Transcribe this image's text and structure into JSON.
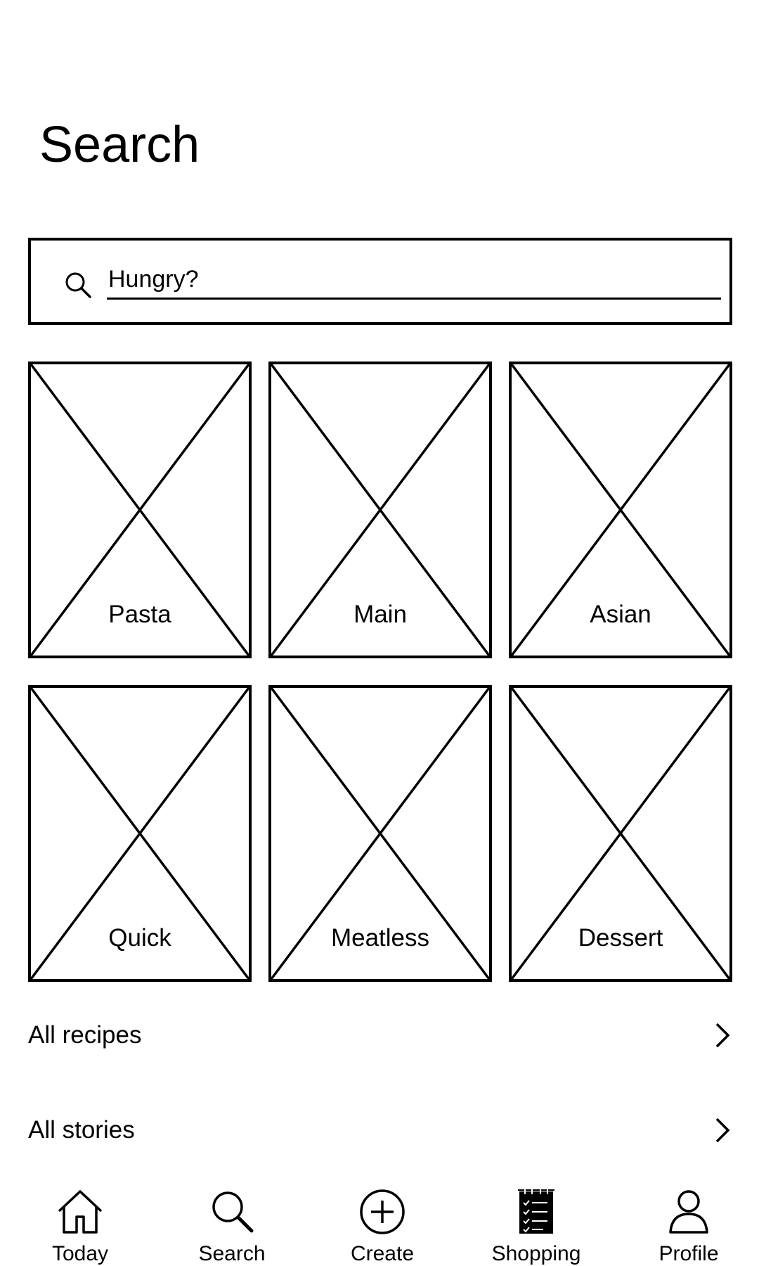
{
  "header": {
    "title": "Search"
  },
  "search": {
    "placeholder": "Hungry?"
  },
  "categories": [
    {
      "label": "Pasta"
    },
    {
      "label": "Main"
    },
    {
      "label": "Asian"
    },
    {
      "label": "Quick"
    },
    {
      "label": "Meatless"
    },
    {
      "label": "Dessert"
    }
  ],
  "links": [
    {
      "label": "All recipes",
      "icon": "chevron-right-icon"
    },
    {
      "label": "All stories",
      "icon": "chevron-right-icon"
    }
  ],
  "tabbar": {
    "tabs": [
      {
        "label": "Today",
        "icon": "home-icon"
      },
      {
        "label": "Search",
        "icon": "search-icon"
      },
      {
        "label": "Create",
        "icon": "plus-circle-icon"
      },
      {
        "label": "Shopping",
        "icon": "checklist-icon"
      },
      {
        "label": "Profile",
        "icon": "person-icon"
      }
    ]
  }
}
